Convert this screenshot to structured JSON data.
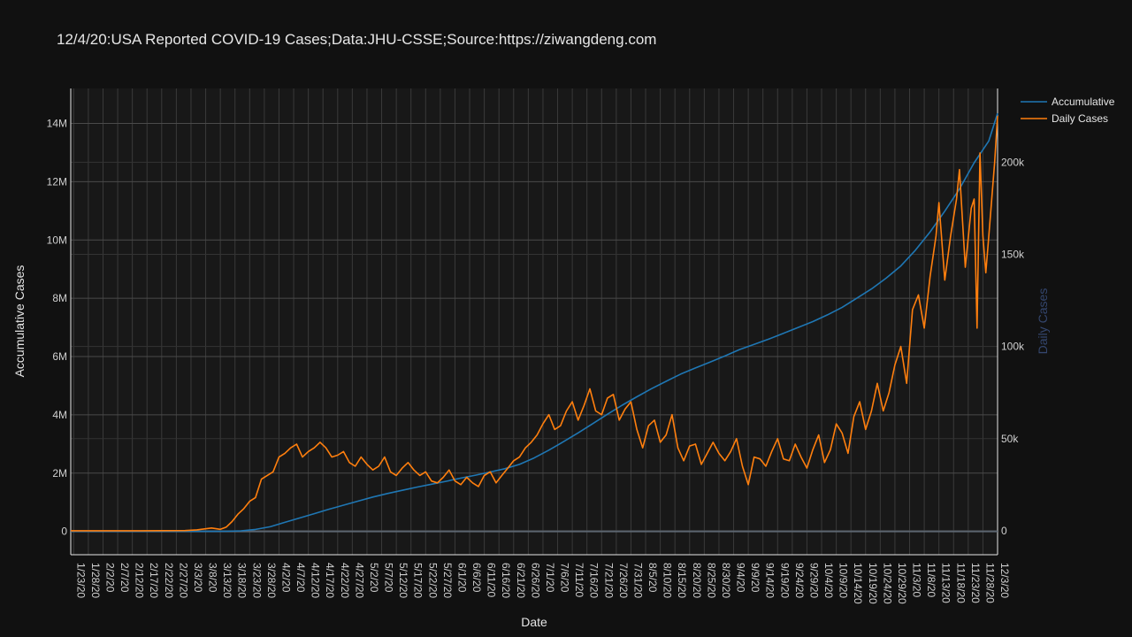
{
  "chart_data": {
    "type": "line",
    "title": "12/4/20:USA Reported COVID-19 Cases;Data:JHU-CSSE;Source:https://ziwangdeng.com",
    "xlabel": "Date",
    "ylabel_left": "Accumulative Cases",
    "ylabel_right": "Daily Cases",
    "x_start": "1/22/20",
    "x_end": "12/3/20",
    "xticks": [
      "1/23/20",
      "1/28/20",
      "2/2/20",
      "2/7/20",
      "2/12/20",
      "2/17/20",
      "2/22/20",
      "2/27/20",
      "3/3/20",
      "3/8/20",
      "3/13/20",
      "3/18/20",
      "3/23/20",
      "3/28/20",
      "4/2/20",
      "4/7/20",
      "4/12/20",
      "4/17/20",
      "4/22/20",
      "4/27/20",
      "5/2/20",
      "5/7/20",
      "5/12/20",
      "5/17/20",
      "5/22/20",
      "5/27/20",
      "6/1/20",
      "6/6/20",
      "6/11/20",
      "6/16/20",
      "6/21/20",
      "6/26/20",
      "7/1/20",
      "7/6/20",
      "7/11/20",
      "7/16/20",
      "7/21/20",
      "7/26/20",
      "7/31/20",
      "8/5/20",
      "8/10/20",
      "8/15/20",
      "8/20/20",
      "8/25/20",
      "8/30/20",
      "9/4/20",
      "9/9/20",
      "9/14/20",
      "9/19/20",
      "9/24/20",
      "9/29/20",
      "10/4/20",
      "10/9/20",
      "10/14/20",
      "10/19/20",
      "10/24/20",
      "10/29/20",
      "11/3/20",
      "11/8/20",
      "11/13/20",
      "11/18/20",
      "11/23/20",
      "11/28/20",
      "12/3/20"
    ],
    "y_left_ticks": [
      {
        "value": 0,
        "label": "0"
      },
      {
        "value": 2000000,
        "label": "2M"
      },
      {
        "value": 4000000,
        "label": "4M"
      },
      {
        "value": 6000000,
        "label": "6M"
      },
      {
        "value": 8000000,
        "label": "8M"
      },
      {
        "value": 10000000,
        "label": "10M"
      },
      {
        "value": 12000000,
        "label": "12M"
      },
      {
        "value": 14000000,
        "label": "14M"
      }
    ],
    "y_right_ticks": [
      {
        "value": 0,
        "label": "0"
      },
      {
        "value": 50000,
        "label": "50k"
      },
      {
        "value": 100000,
        "label": "100k"
      },
      {
        "value": 150000,
        "label": "150k"
      },
      {
        "value": 200000,
        "label": "200k"
      }
    ],
    "ylim_left": [
      -800000,
      15200000
    ],
    "ylim_right": [
      -13000,
      240000
    ],
    "grid": true,
    "legend_position": "top-right",
    "series": [
      {
        "name": "Accumulative",
        "axis": "left",
        "color": "#1f77b4",
        "points": [
          [
            "1/22/20",
            1
          ],
          [
            "3/1/20",
            75
          ],
          [
            "3/10/20",
            1000
          ],
          [
            "3/15/20",
            3500
          ],
          [
            "3/20/20",
            19000
          ],
          [
            "3/25/20",
            68000
          ],
          [
            "3/30/20",
            160000
          ],
          [
            "4/4/20",
            310000
          ],
          [
            "4/9/20",
            460000
          ],
          [
            "4/14/20",
            610000
          ],
          [
            "4/19/20",
            760000
          ],
          [
            "4/24/20",
            900000
          ],
          [
            "4/29/20",
            1040000
          ],
          [
            "5/4/20",
            1180000
          ],
          [
            "5/9/20",
            1300000
          ],
          [
            "5/14/20",
            1410000
          ],
          [
            "5/19/20",
            1520000
          ],
          [
            "5/24/20",
            1620000
          ],
          [
            "5/29/20",
            1720000
          ],
          [
            "6/3/20",
            1830000
          ],
          [
            "6/8/20",
            1930000
          ],
          [
            "6/13/20",
            2040000
          ],
          [
            "6/18/20",
            2150000
          ],
          [
            "6/23/20",
            2300000
          ],
          [
            "6/28/20",
            2520000
          ],
          [
            "7/3/20",
            2790000
          ],
          [
            "7/8/20",
            3080000
          ],
          [
            "7/13/20",
            3380000
          ],
          [
            "7/18/20",
            3700000
          ],
          [
            "7/23/20",
            4020000
          ],
          [
            "7/28/20",
            4330000
          ],
          [
            "8/2/20",
            4620000
          ],
          [
            "8/7/20",
            4900000
          ],
          [
            "8/12/20",
            5150000
          ],
          [
            "8/17/20",
            5400000
          ],
          [
            "8/22/20",
            5610000
          ],
          [
            "8/27/20",
            5810000
          ],
          [
            "9/1/20",
            6020000
          ],
          [
            "9/6/20",
            6240000
          ],
          [
            "9/11/20",
            6420000
          ],
          [
            "9/16/20",
            6600000
          ],
          [
            "9/21/20",
            6800000
          ],
          [
            "9/26/20",
            7000000
          ],
          [
            "10/1/20",
            7200000
          ],
          [
            "10/6/20",
            7430000
          ],
          [
            "10/11/20",
            7690000
          ],
          [
            "10/16/20",
            8000000
          ],
          [
            "10/21/20",
            8320000
          ],
          [
            "10/26/20",
            8690000
          ],
          [
            "10/31/20",
            9110000
          ],
          [
            "11/5/20",
            9650000
          ],
          [
            "11/10/20",
            10280000
          ],
          [
            "11/15/20",
            10990000
          ],
          [
            "11/20/20",
            11750000
          ],
          [
            "11/25/20",
            12650000
          ],
          [
            "11/30/20",
            13400000
          ],
          [
            "12/3/20",
            14350000
          ]
        ]
      },
      {
        "name": "Daily Cases",
        "axis": "right",
        "color": "#ff7f0e",
        "points": [
          [
            "1/22/20",
            0
          ],
          [
            "2/15/20",
            0
          ],
          [
            "3/1/20",
            100
          ],
          [
            "3/5/20",
            500
          ],
          [
            "3/10/20",
            1500
          ],
          [
            "3/13/20",
            800
          ],
          [
            "3/15/20",
            2000
          ],
          [
            "3/17/20",
            5000
          ],
          [
            "3/19/20",
            9000
          ],
          [
            "3/21/20",
            12000
          ],
          [
            "3/23/20",
            16000
          ],
          [
            "3/25/20",
            18000
          ],
          [
            "3/27/20",
            28000
          ],
          [
            "3/29/20",
            30000
          ],
          [
            "3/31/20",
            32000
          ],
          [
            "4/2/20",
            40000
          ],
          [
            "4/4/20",
            42000
          ],
          [
            "4/6/20",
            45000
          ],
          [
            "4/8/20",
            47000
          ],
          [
            "4/10/20",
            40000
          ],
          [
            "4/12/20",
            43000
          ],
          [
            "4/14/20",
            45000
          ],
          [
            "4/16/20",
            48000
          ],
          [
            "4/18/20",
            45000
          ],
          [
            "4/20/20",
            40000
          ],
          [
            "4/22/20",
            41000
          ],
          [
            "4/24/20",
            43000
          ],
          [
            "4/26/20",
            37000
          ],
          [
            "4/28/20",
            35000
          ],
          [
            "4/30/20",
            40000
          ],
          [
            "5/2/20",
            36000
          ],
          [
            "5/4/20",
            33000
          ],
          [
            "5/6/20",
            35000
          ],
          [
            "5/8/20",
            40000
          ],
          [
            "5/10/20",
            32000
          ],
          [
            "5/12/20",
            30000
          ],
          [
            "5/14/20",
            34000
          ],
          [
            "5/16/20",
            37000
          ],
          [
            "5/18/20",
            33000
          ],
          [
            "5/20/20",
            30000
          ],
          [
            "5/22/20",
            32000
          ],
          [
            "5/24/20",
            27000
          ],
          [
            "5/26/20",
            26000
          ],
          [
            "5/28/20",
            29000
          ],
          [
            "5/30/20",
            33000
          ],
          [
            "6/1/20",
            27000
          ],
          [
            "6/3/20",
            25000
          ],
          [
            "6/5/20",
            29000
          ],
          [
            "6/7/20",
            26000
          ],
          [
            "6/9/20",
            24000
          ],
          [
            "6/11/20",
            30000
          ],
          [
            "6/13/20",
            32000
          ],
          [
            "6/15/20",
            26000
          ],
          [
            "6/17/20",
            30000
          ],
          [
            "6/19/20",
            34000
          ],
          [
            "6/21/20",
            38000
          ],
          [
            "6/23/20",
            40000
          ],
          [
            "6/25/20",
            45000
          ],
          [
            "6/27/20",
            48000
          ],
          [
            "6/29/20",
            52000
          ],
          [
            "7/1/20",
            58000
          ],
          [
            "7/3/20",
            63000
          ],
          [
            "7/5/20",
            55000
          ],
          [
            "7/7/20",
            57000
          ],
          [
            "7/9/20",
            65000
          ],
          [
            "7/11/20",
            70000
          ],
          [
            "7/13/20",
            60000
          ],
          [
            "7/15/20",
            68000
          ],
          [
            "7/17/20",
            77000
          ],
          [
            "7/19/20",
            65000
          ],
          [
            "7/21/20",
            63000
          ],
          [
            "7/23/20",
            72000
          ],
          [
            "7/25/20",
            74000
          ],
          [
            "7/27/20",
            60000
          ],
          [
            "7/29/20",
            66000
          ],
          [
            "7/31/20",
            70000
          ],
          [
            "8/2/20",
            55000
          ],
          [
            "8/4/20",
            45000
          ],
          [
            "8/6/20",
            57000
          ],
          [
            "8/8/20",
            60000
          ],
          [
            "8/10/20",
            48000
          ],
          [
            "8/12/20",
            52000
          ],
          [
            "8/14/20",
            63000
          ],
          [
            "8/16/20",
            45000
          ],
          [
            "8/18/20",
            38000
          ],
          [
            "8/20/20",
            46000
          ],
          [
            "8/22/20",
            47000
          ],
          [
            "8/24/20",
            36000
          ],
          [
            "8/26/20",
            42000
          ],
          [
            "8/28/20",
            48000
          ],
          [
            "8/30/20",
            42000
          ],
          [
            "9/1/20",
            38000
          ],
          [
            "9/3/20",
            43000
          ],
          [
            "9/5/20",
            50000
          ],
          [
            "9/7/20",
            35000
          ],
          [
            "9/9/20",
            25000
          ],
          [
            "9/11/20",
            40000
          ],
          [
            "9/13/20",
            39000
          ],
          [
            "9/15/20",
            35000
          ],
          [
            "9/17/20",
            43000
          ],
          [
            "9/19/20",
            50000
          ],
          [
            "9/21/20",
            39000
          ],
          [
            "9/23/20",
            38000
          ],
          [
            "9/25/20",
            47000
          ],
          [
            "9/27/20",
            40000
          ],
          [
            "9/29/20",
            34000
          ],
          [
            "10/1/20",
            44000
          ],
          [
            "10/3/20",
            52000
          ],
          [
            "10/5/20",
            37000
          ],
          [
            "10/7/20",
            44000
          ],
          [
            "10/9/20",
            58000
          ],
          [
            "10/11/20",
            53000
          ],
          [
            "10/13/20",
            42000
          ],
          [
            "10/15/20",
            62000
          ],
          [
            "10/17/20",
            70000
          ],
          [
            "10/19/20",
            55000
          ],
          [
            "10/21/20",
            65000
          ],
          [
            "10/23/20",
            80000
          ],
          [
            "10/25/20",
            65000
          ],
          [
            "10/27/20",
            75000
          ],
          [
            "10/29/20",
            90000
          ],
          [
            "10/31/20",
            100000
          ],
          [
            "11/2/20",
            80000
          ],
          [
            "11/4/20",
            120000
          ],
          [
            "11/6/20",
            128000
          ],
          [
            "11/8/20",
            110000
          ],
          [
            "11/10/20",
            138000
          ],
          [
            "11/12/20",
            160000
          ],
          [
            "11/13/20",
            178000
          ],
          [
            "11/15/20",
            136000
          ],
          [
            "11/17/20",
            160000
          ],
          [
            "11/19/20",
            180000
          ],
          [
            "11/20/20",
            196000
          ],
          [
            "11/22/20",
            143000
          ],
          [
            "11/24/20",
            175000
          ],
          [
            "11/25/20",
            180000
          ],
          [
            "11/26/20",
            110000
          ],
          [
            "11/27/20",
            205000
          ],
          [
            "11/28/20",
            160000
          ],
          [
            "11/29/20",
            140000
          ],
          [
            "11/30/20",
            160000
          ],
          [
            "12/1/20",
            180000
          ],
          [
            "12/2/20",
            200000
          ],
          [
            "12/3/20",
            225000
          ]
        ]
      }
    ]
  }
}
